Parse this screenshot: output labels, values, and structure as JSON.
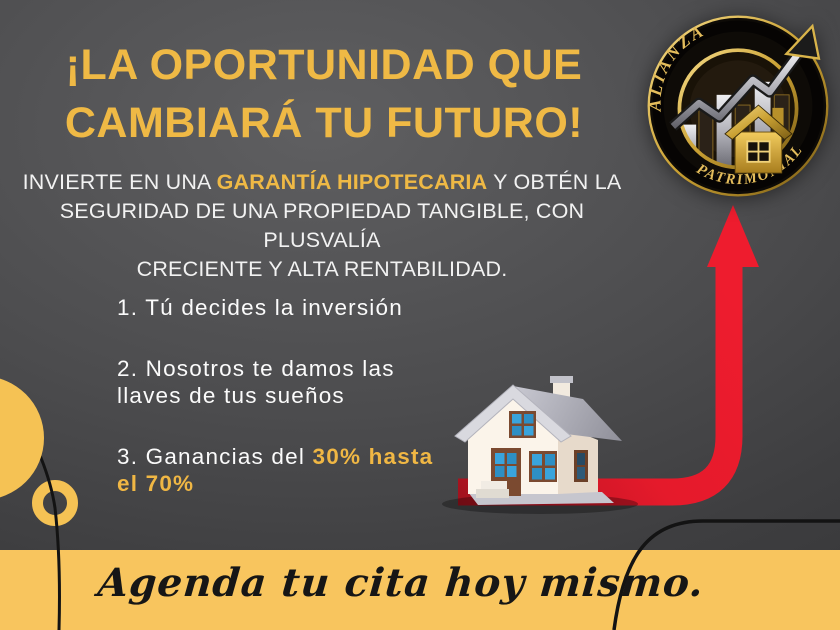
{
  "colors": {
    "accent_gold": "#efb945",
    "list_gold": "#f0b744",
    "strip_yellow": "#f8c55e",
    "circle_yellow": "#f5c254",
    "arrow_red": "#e81c2c",
    "background_dark": "#4a4a4c",
    "text_white": "#f2f2f2",
    "logo_gold": "#dfb654"
  },
  "headline": {
    "lines": [
      "¡LA OPORTUNIDAD QUE",
      "CAMBIARÁ TU FUTURO!"
    ]
  },
  "intro": {
    "lines": [
      [
        {
          "text": "INVIERTE EN UNA ",
          "highlight": false
        },
        {
          "text": "GARANTÍA HIPOTECARIA",
          "highlight": true
        },
        {
          "text": " Y OBTÉN LA",
          "highlight": false
        }
      ],
      [
        {
          "text": "SEGURIDAD DE UNA PROPIEDAD TANGIBLE, CON PLUSVALÍA",
          "highlight": false
        }
      ],
      [
        {
          "text": "CRECIENTE Y ALTA RENTABILIDAD.",
          "highlight": false
        }
      ]
    ]
  },
  "benefits": {
    "items": [
      {
        "lines": [
          [
            {
              "text": "1. Tú decides la inversión",
              "highlight": false
            }
          ]
        ]
      },
      {
        "lines": [
          [
            {
              "text": "2. Nosotros te damos las",
              "highlight": false
            }
          ],
          [
            {
              "text": "llaves de tus sueños",
              "highlight": false
            }
          ]
        ]
      },
      {
        "lines": [
          [
            {
              "text": "3. Ganancias del ",
              "highlight": false
            },
            {
              "text": "30% hasta",
              "highlight": true
            }
          ],
          [
            {
              "text": "el 70%",
              "highlight": true
            }
          ]
        ]
      }
    ]
  },
  "cta": {
    "text": "Agenda tu cita hoy mismo."
  },
  "logo": {
    "top": "ALIANZA",
    "bottom": "PATRIMONIAL"
  }
}
